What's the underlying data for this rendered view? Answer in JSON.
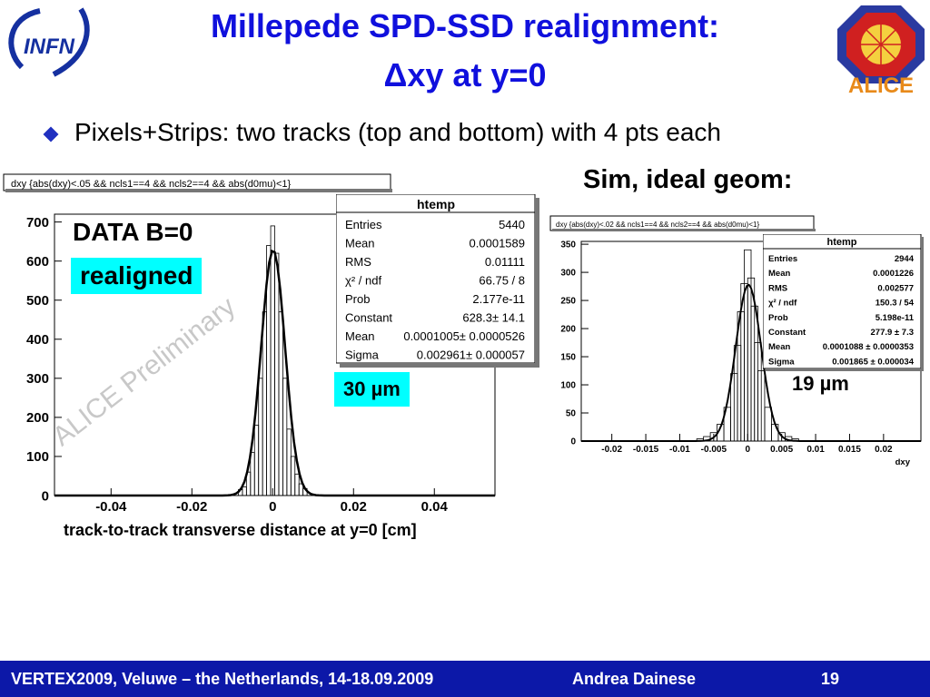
{
  "title_line1": "Millepede SPD-SSD realignment:",
  "title_line2": "Δxy at y=0",
  "bullet": "Pixels+Strips: two tracks (top and bottom) with 4 pts each",
  "sim_label": "Sim, ideal geom:",
  "logos": {
    "left": "INFN",
    "right": "ALICE"
  },
  "left_plot": {
    "label": "DATA B=0",
    "tag": "realigned",
    "resolution": "30 µm",
    "watermark": "ALICE Preliminary",
    "xcaption": "track-to-track transverse distance at y=0 [cm]",
    "stats_title": "htemp",
    "stats": [
      {
        "k": "Entries",
        "v": "5440"
      },
      {
        "k": "Mean",
        "v": "0.0001589"
      },
      {
        "k": "RMS",
        "v": "0.01111"
      },
      {
        "k": "χ² / ndf",
        "v": "66.75 / 8"
      },
      {
        "k": "Prob",
        "v": "2.177e-11"
      },
      {
        "k": "Constant",
        "v": "628.3± 14.1"
      },
      {
        "k": "Mean",
        "v": "0.0001005± 0.0000526"
      },
      {
        "k": "Sigma",
        "v": "0.002961± 0.000057"
      }
    ]
  },
  "right_plot": {
    "resolution": "19 µm",
    "stats_title": "htemp",
    "stats": [
      {
        "k": "Entries",
        "v": "2944"
      },
      {
        "k": "Mean",
        "v": "0.0001226"
      },
      {
        "k": "RMS",
        "v": "0.002577"
      },
      {
        "k": "χ² / ndf",
        "v": "150.3 / 54"
      },
      {
        "k": "Prob",
        "v": "5.198e-11"
      },
      {
        "k": "Constant",
        "v": "277.9 ± 7.3"
      },
      {
        "k": "Mean",
        "v": "0.0001088 ± 0.0000353"
      },
      {
        "k": "Sigma",
        "v": "0.001865 ± 0.000034"
      }
    ]
  },
  "footer": {
    "conference": "VERTEX2009, Veluwe – the Netherlands, 14-18.09.2009",
    "author": "Andrea Dainese",
    "page": "19"
  },
  "chart_data": [
    {
      "type": "bar",
      "title": "dxy {abs(dxy)<.05 && ncls1==4 && ncls2==4 && abs(d0mu)<1}",
      "xlabel": "",
      "ylabel": "",
      "xlim": [
        -0.054,
        0.055
      ],
      "ylim": [
        0,
        720
      ],
      "xticks": [
        -0.04,
        -0.02,
        0,
        0.02,
        0.04
      ],
      "xtick_labels": [
        "-0.04",
        "-0.02",
        "0",
        "0.02",
        "0.04"
      ],
      "yticks": [
        0,
        100,
        200,
        300,
        400,
        500,
        600,
        700
      ],
      "ytick_labels": [
        "0",
        "100",
        "200",
        "300",
        "400",
        "500",
        "600",
        "700"
      ],
      "x": [
        -0.008,
        -0.007,
        -0.006,
        -0.005,
        -0.004,
        -0.003,
        -0.002,
        -0.001,
        0.0,
        0.001,
        0.002,
        0.003,
        0.004,
        0.005,
        0.006,
        0.007,
        0.008
      ],
      "values": [
        15,
        22,
        60,
        110,
        180,
        300,
        470,
        640,
        690,
        620,
        470,
        300,
        170,
        100,
        55,
        30,
        18
      ],
      "fit": {
        "constant": 628.3,
        "mean": 0.0001005,
        "sigma": 0.002961
      }
    },
    {
      "type": "bar",
      "title": "dxy {abs(dxy)<.02 && ncls1==4 && ncls2==4 && abs(d0mu)<1}",
      "xlabel": "dxy",
      "ylabel": "",
      "xlim": [
        -0.0245,
        0.0255
      ],
      "ylim": [
        0,
        355
      ],
      "xticks": [
        -0.02,
        -0.015,
        -0.01,
        -0.005,
        0,
        0.005,
        0.01,
        0.015,
        0.02
      ],
      "xtick_labels": [
        "-0.02",
        "-0.015",
        "-0.01",
        "-0.005",
        "0",
        "0.005",
        "0.01",
        "0.015",
        "0.02"
      ],
      "yticks": [
        0,
        50,
        100,
        150,
        200,
        250,
        300,
        350
      ],
      "ytick_labels": [
        "0",
        "50",
        "100",
        "150",
        "200",
        "250",
        "300",
        "350"
      ],
      "x": [
        -0.007,
        -0.006,
        -0.005,
        -0.004,
        -0.003,
        -0.002,
        -0.0015,
        -0.001,
        -0.0005,
        0.0,
        0.0005,
        0.001,
        0.0015,
        0.002,
        0.003,
        0.004,
        0.005,
        0.006,
        0.007
      ],
      "values": [
        4,
        8,
        15,
        30,
        60,
        120,
        170,
        230,
        280,
        340,
        290,
        240,
        175,
        125,
        60,
        30,
        15,
        8,
        4
      ],
      "fit": {
        "constant": 277.9,
        "mean": 0.0001088,
        "sigma": 0.001865
      }
    }
  ],
  "colors": {
    "title": "#1010dd",
    "highlight": "#00ffff",
    "footer": "#0c18a8"
  }
}
